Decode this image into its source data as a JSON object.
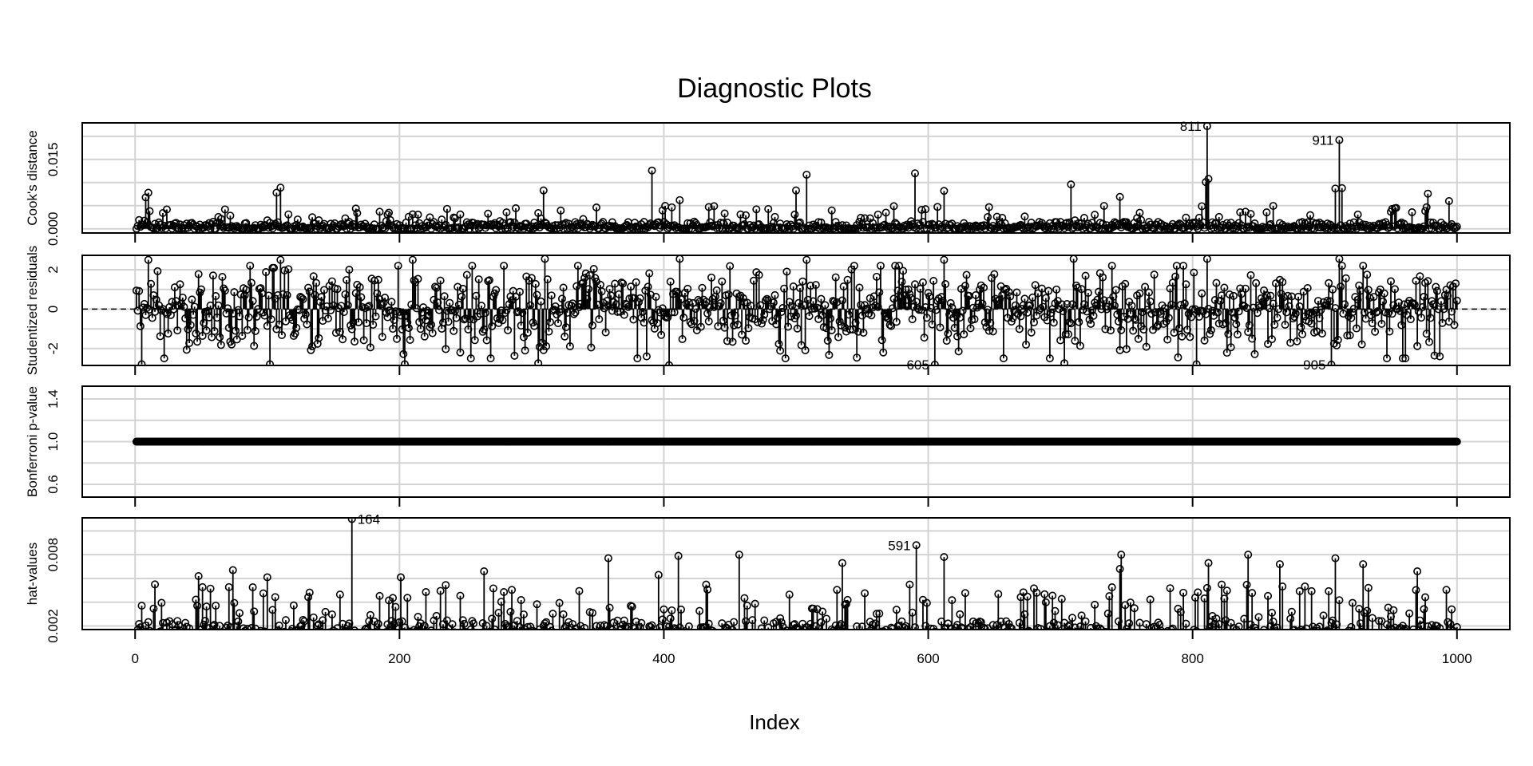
{
  "title": "Diagnostic Plots",
  "xlabel": "Index",
  "xticks": [
    0,
    200,
    400,
    600,
    800,
    1000
  ],
  "xlim": [
    -40,
    1040
  ],
  "n": 1000,
  "colors": {
    "points": "#000000",
    "grid": "#d3d3d3",
    "frame": "#000000"
  },
  "chart_data": [
    {
      "type": "scatter",
      "style": "stem-points",
      "ylabel": "Cook's distance",
      "yticks": [
        0.0,
        0.015
      ],
      "ytick_labels": [
        "0.000",
        "0.015"
      ],
      "grid_y": [
        0.0,
        0.005,
        0.01,
        0.015,
        0.02
      ],
      "ylim": [
        -0.0009,
        0.0229
      ],
      "baseline": 0,
      "highlights": [
        {
          "x": 811,
          "y": 0.0222
        },
        {
          "x": 911,
          "y": 0.0192
        },
        {
          "x": 391,
          "y": 0.0126
        },
        {
          "x": 590,
          "y": 0.012
        },
        {
          "x": 508,
          "y": 0.0117
        },
        {
          "x": 812,
          "y": 0.0108
        },
        {
          "x": 810,
          "y": 0.0101
        },
        {
          "x": 708,
          "y": 0.0096
        },
        {
          "x": 110,
          "y": 0.0089
        },
        {
          "x": 908,
          "y": 0.0087
        },
        {
          "x": 913,
          "y": 0.0088
        },
        {
          "x": 500,
          "y": 0.0083
        },
        {
          "x": 309,
          "y": 0.0083
        },
        {
          "x": 612,
          "y": 0.0082
        },
        {
          "x": 10,
          "y": 0.0078
        },
        {
          "x": 978,
          "y": 0.0076
        },
        {
          "x": 994,
          "y": 0.006
        },
        {
          "x": 8,
          "y": 0.0068
        },
        {
          "x": 107,
          "y": 0.0078
        },
        {
          "x": 745,
          "y": 0.0069
        },
        {
          "x": 412,
          "y": 0.0062
        }
      ],
      "labels": [
        {
          "x": 811,
          "text": "811",
          "side": "left"
        },
        {
          "x": 911,
          "text": "911",
          "side": "left"
        }
      ]
    },
    {
      "type": "scatter",
      "style": "stem-points",
      "ylabel": "Studentized residuals",
      "yticks": [
        -2,
        0,
        2
      ],
      "ytick_labels": [
        "-2",
        "0",
        "2"
      ],
      "grid_y": [
        -2,
        -1,
        0,
        1,
        2
      ],
      "ylim": [
        -2.86,
        2.73
      ],
      "baseline": 0,
      "reference_line": 0,
      "highlights": [
        {
          "x": 605,
          "y": -2.82
        },
        {
          "x": 905,
          "y": -2.82
        },
        {
          "x": 811,
          "y": 2.55
        },
        {
          "x": 911,
          "y": 2.55
        },
        {
          "x": 10,
          "y": 2.5
        },
        {
          "x": 110,
          "y": 2.5
        },
        {
          "x": 210,
          "y": 2.5
        },
        {
          "x": 310,
          "y": 2.55
        },
        {
          "x": 412,
          "y": 2.55
        },
        {
          "x": 508,
          "y": 2.5
        },
        {
          "x": 612,
          "y": 2.5
        },
        {
          "x": 710,
          "y": 2.55
        },
        {
          "x": 5,
          "y": -2.8
        },
        {
          "x": 102,
          "y": -2.8
        },
        {
          "x": 204,
          "y": -2.8
        },
        {
          "x": 305,
          "y": -2.75
        },
        {
          "x": 404,
          "y": -2.85
        },
        {
          "x": 803,
          "y": -2.8
        },
        {
          "x": 987,
          "y": -2.4
        },
        {
          "x": 492,
          "y": -2.5
        },
        {
          "x": 703,
          "y": -2.75
        }
      ],
      "labels": [
        {
          "x": 605,
          "text": "605",
          "side": "left"
        },
        {
          "x": 905,
          "text": "905",
          "side": "left"
        }
      ]
    },
    {
      "type": "scatter",
      "style": "stem-points",
      "ylabel": "Bonferroni p-value",
      "yticks": [
        0.6,
        1.0,
        1.4
      ],
      "ytick_labels": [
        "0.6",
        "1.0",
        "1.4"
      ],
      "grid_y": [
        0.6,
        0.8,
        1.0,
        1.2,
        1.4
      ],
      "ylim": [
        0.48,
        1.52
      ],
      "constant_value": 1.0,
      "highlights": [],
      "labels": []
    },
    {
      "type": "scatter",
      "style": "stem-points",
      "ylabel": "hat-values",
      "yticks": [
        0.002,
        0.008
      ],
      "ytick_labels": [
        "0.002",
        "0.008"
      ],
      "grid_y": [
        0.002,
        0.004,
        0.006,
        0.008,
        0.01
      ],
      "ylim": [
        0.0017,
        0.0111
      ],
      "baseline": 0,
      "highlights": [
        {
          "x": 164,
          "y": 0.011
        },
        {
          "x": 591,
          "y": 0.0088
        },
        {
          "x": 842,
          "y": 0.008
        },
        {
          "x": 457,
          "y": 0.008
        },
        {
          "x": 746,
          "y": 0.008
        },
        {
          "x": 411,
          "y": 0.0079
        },
        {
          "x": 358,
          "y": 0.0077
        },
        {
          "x": 908,
          "y": 0.0077
        },
        {
          "x": 612,
          "y": 0.0078
        },
        {
          "x": 929,
          "y": 0.0072
        },
        {
          "x": 535,
          "y": 0.0073
        },
        {
          "x": 74,
          "y": 0.0067
        },
        {
          "x": 970,
          "y": 0.0066
        },
        {
          "x": 396,
          "y": 0.0063
        },
        {
          "x": 745,
          "y": 0.0068
        },
        {
          "x": 812,
          "y": 0.0073
        },
        {
          "x": 866,
          "y": 0.0072
        },
        {
          "x": 264,
          "y": 0.0066
        },
        {
          "x": 48,
          "y": 0.0062
        },
        {
          "x": 100,
          "y": 0.0061
        },
        {
          "x": 201,
          "y": 0.0061
        }
      ],
      "labels": [
        {
          "x": 164,
          "text": "164",
          "side": "right"
        },
        {
          "x": 591,
          "text": "591",
          "side": "left"
        }
      ]
    }
  ]
}
